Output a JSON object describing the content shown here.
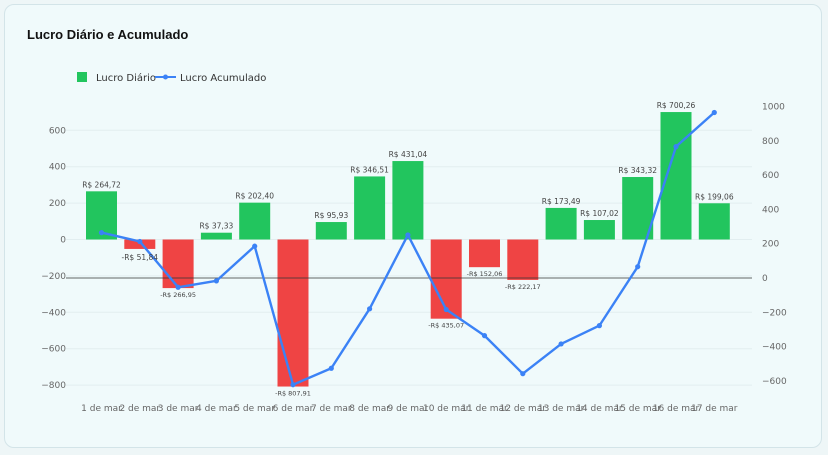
{
  "chart_data": {
    "type": "bar",
    "title": "Lucro Diário e Acumulado",
    "categories": [
      "1 de mar",
      "2 de mar",
      "3 de mar",
      "4 de mar",
      "5 de mar",
      "6 de mar",
      "7 de mar",
      "8 de mar",
      "9 de mar",
      "10 de mar",
      "11 de mar",
      "12 de mar",
      "13 de mar",
      "14 de mar",
      "15 de mar",
      "16 de mar",
      "17 de mar"
    ],
    "series": [
      {
        "name": "Lucro Diário",
        "type": "bar",
        "axis": "left",
        "values": [
          264.72,
          -51.84,
          -266.95,
          37.33,
          202.4,
          -807.91,
          95.93,
          346.51,
          431.04,
          -435.07,
          -152.06,
          -222.17,
          173.49,
          107.02,
          343.32,
          700.26,
          199.06
        ],
        "labels": [
          "R$ 264,72",
          "-R$ 51,84",
          "-R$ 266,95",
          "R$ 37,33",
          "R$ 202,40",
          "-R$ 807,91",
          "R$ 95,93",
          "R$ 346,51",
          "R$ 431,04",
          "-R$ 435,07",
          "-R$ 152,06",
          "-R$ 222,17",
          "R$ 173,49",
          "R$ 107,02",
          "R$ 343,32",
          "R$ 700,26",
          "R$ 199,06"
        ],
        "positive_color": "#22c55e",
        "negative_color": "#ef4444"
      },
      {
        "name": "Lucro Acumulado",
        "type": "line",
        "axis": "right",
        "values": [
          264.72,
          212.88,
          -54.07,
          -16.74,
          185.66,
          -622.25,
          -526.32,
          -179.81,
          251.23,
          -183.84,
          -335.9,
          -558.07,
          -384.58,
          -277.56,
          65.76,
          766.02,
          965.08
        ],
        "color": "#3b82f6"
      }
    ],
    "yleft": {
      "ticks": [
        600,
        400,
        200,
        0,
        -200,
        -400,
        -600,
        -800
      ],
      "tick_labels": [
        "600",
        "400",
        "200",
        "0",
        "−200",
        "−400",
        "−600",
        "−800"
      ]
    },
    "yright": {
      "ticks": [
        1000,
        800,
        600,
        400,
        200,
        0,
        -200,
        -400,
        -600
      ],
      "tick_labels": [
        "1000",
        "800",
        "600",
        "400",
        "200",
        "0",
        "−200",
        "−400",
        "−600"
      ]
    },
    "legend": "top-left",
    "grid": true,
    "zero_line_axis": "right"
  }
}
